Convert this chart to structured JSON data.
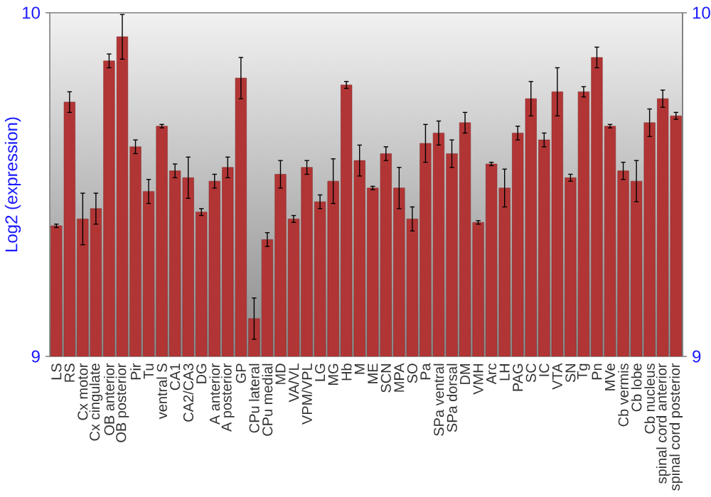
{
  "chart_data": {
    "type": "bar",
    "ylabel": "Log2 (expression)",
    "categories": [
      "LS",
      "RS",
      "Cx motor",
      "Cx cingulate",
      "OB anterior",
      "OB posterior",
      "Pir",
      "Tu",
      "ventral S",
      "CA1",
      "CA2/CA3",
      "DG",
      "A anterior",
      "A posterior",
      "GP",
      "CPu lateral",
      "CPu medial",
      "MD",
      "VA/VL",
      "VPM/VPL",
      "LG",
      "MG",
      "Hb",
      "M",
      "ME",
      "SCN",
      "MPA",
      "SO",
      "Pa",
      "SPa ventral",
      "SPa dorsal",
      "DM",
      "VMH",
      "Arc",
      "LH",
      "PAG",
      "SC",
      "IC",
      "VTA",
      "SN",
      "Tg",
      "Pn",
      "MVe",
      "Cb vermis",
      "Cb lobe",
      "Cb nucleus",
      "spinal cord anterior",
      "spinal cord posterior"
    ],
    "values": [
      9.38,
      9.74,
      9.4,
      9.43,
      9.86,
      9.93,
      9.61,
      9.48,
      9.67,
      9.54,
      9.52,
      9.42,
      9.51,
      9.55,
      9.81,
      9.11,
      9.34,
      9.53,
      9.4,
      9.55,
      9.45,
      9.51,
      9.79,
      9.57,
      9.49,
      9.59,
      9.49,
      9.4,
      9.62,
      9.65,
      9.59,
      9.68,
      9.39,
      9.56,
      9.49,
      9.65,
      9.75,
      9.63,
      9.77,
      9.52,
      9.77,
      9.87,
      9.67,
      9.54,
      9.51,
      9.68,
      9.75,
      9.7
    ],
    "errors": [
      0.005,
      0.03,
      0.075,
      0.045,
      0.02,
      0.065,
      0.02,
      0.035,
      0.005,
      0.02,
      0.06,
      0.01,
      0.02,
      0.03,
      0.06,
      0.06,
      0.02,
      0.04,
      0.01,
      0.02,
      0.02,
      0.065,
      0.01,
      0.045,
      0.005,
      0.02,
      0.06,
      0.035,
      0.055,
      0.035,
      0.04,
      0.03,
      0.005,
      0.005,
      0.055,
      0.02,
      0.05,
      0.02,
      0.07,
      0.01,
      0.015,
      0.03,
      0.005,
      0.025,
      0.06,
      0.04,
      0.025,
      0.01
    ],
    "color": "#b23535",
    "ylim": [
      9,
      10
    ],
    "yticks": [
      9,
      10
    ],
    "y2lim": [
      9,
      10
    ],
    "y2ticks": [
      9,
      10
    ]
  }
}
